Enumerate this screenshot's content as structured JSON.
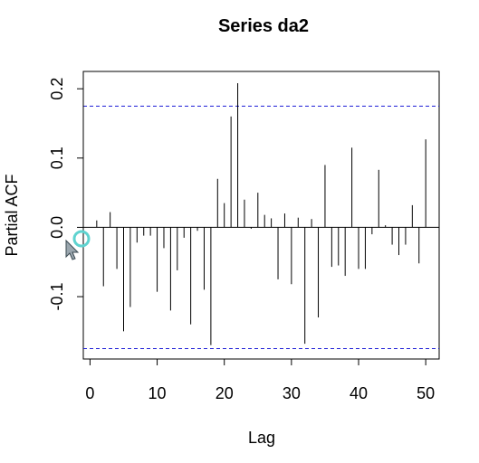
{
  "chart_data": {
    "type": "bar",
    "title": "Series  da2",
    "xlabel": "Lag",
    "ylabel": "Partial ACF",
    "xlim": [
      -1,
      52
    ],
    "ylim": [
      -0.19,
      0.225
    ],
    "x_ticks": [
      0,
      10,
      20,
      30,
      40,
      50
    ],
    "y_ticks": [
      -0.1,
      0.0,
      0.1,
      0.2
    ],
    "x_tick_labels": [
      "0",
      "10",
      "20",
      "30",
      "40",
      "50"
    ],
    "y_tick_labels": [
      "-0.1",
      "0.0",
      "0.1",
      "0.2"
    ],
    "confidence_bounds": [
      0.175,
      -0.175
    ],
    "confidence_color": "#1f1fd6",
    "zero_line": true,
    "grid": false,
    "lags": [
      1,
      2,
      3,
      4,
      5,
      6,
      7,
      8,
      9,
      10,
      11,
      12,
      13,
      14,
      15,
      16,
      17,
      18,
      19,
      20,
      21,
      22,
      23,
      24,
      25,
      26,
      27,
      28,
      29,
      30,
      31,
      32,
      33,
      34,
      35,
      36,
      37,
      38,
      39,
      40,
      41,
      42,
      43,
      44,
      45,
      46,
      47,
      48,
      49,
      50
    ],
    "values": [
      0.01,
      -0.085,
      0.022,
      -0.06,
      -0.15,
      -0.115,
      -0.022,
      -0.012,
      -0.012,
      -0.093,
      -0.03,
      -0.12,
      -0.062,
      -0.015,
      -0.14,
      -0.005,
      -0.09,
      -0.17,
      0.07,
      0.035,
      0.16,
      0.208,
      0.04,
      -0.002,
      0.05,
      0.018,
      0.013,
      -0.075,
      0.02,
      -0.082,
      0.014,
      -0.168,
      0.012,
      -0.13,
      0.09,
      -0.057,
      -0.055,
      -0.07,
      0.115,
      -0.06,
      -0.06,
      -0.01,
      0.083,
      0.003,
      -0.025,
      -0.04,
      -0.025,
      0.032,
      -0.052,
      0.127
    ]
  },
  "cursor": {
    "icon": "arrow-cursor-icon",
    "ring_color": "#5fd3d0"
  }
}
